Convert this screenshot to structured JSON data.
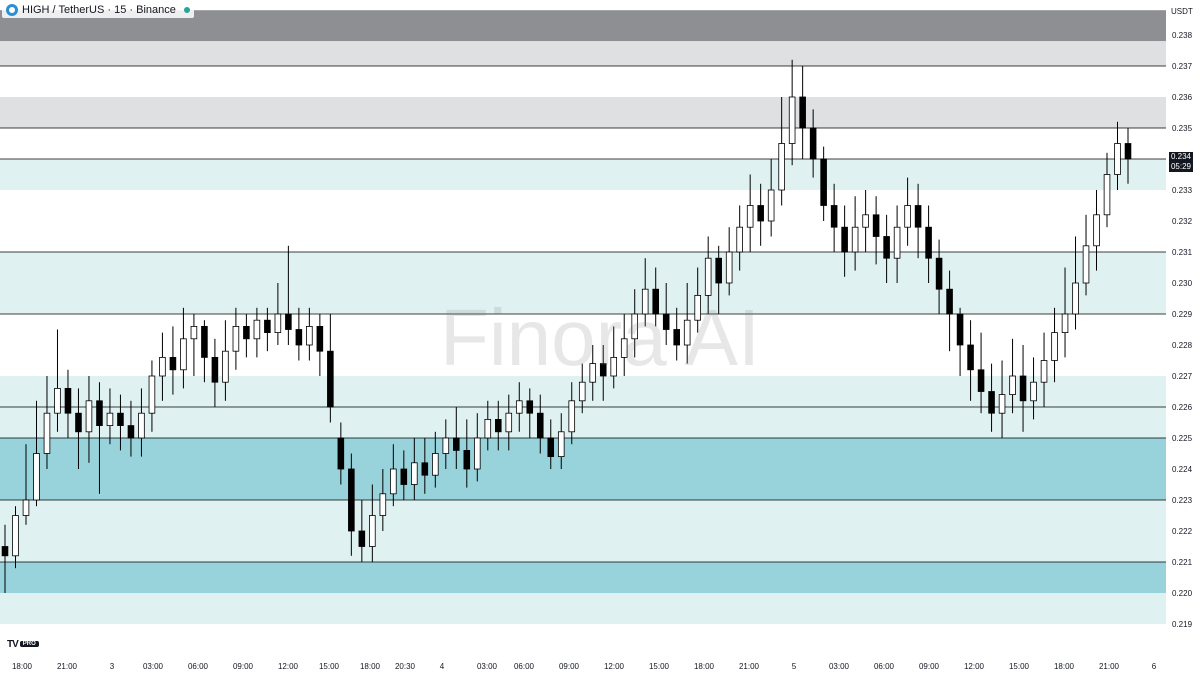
{
  "header": {
    "symbol": "HIGH / TetherUS · 15 · Binance",
    "watermark": "Finora AI",
    "currency": "USDT"
  },
  "price_tag": {
    "price": "0.234",
    "countdown": "05:29"
  },
  "logo": {
    "mark": "TV",
    "badge": "PRO"
  },
  "colors": {
    "zone_dark_gray": "#8e8f93",
    "zone_light_gray": "#dfe0e2",
    "zone_pale_teal": "#e0f1f2",
    "zone_mid_teal": "#98d3db",
    "zone_strong_teal": "#6fc3c6",
    "zone_green": "#b1dcca",
    "candle": "#000000"
  },
  "chart_data": {
    "type": "candlestick",
    "y_axis": {
      "labels": [
        "0.238",
        "0.237",
        "0.236",
        "0.235",
        "0.234",
        "0.233",
        "0.232",
        "0.231",
        "0.230",
        "0.229",
        "0.228",
        "0.227",
        "0.226",
        "0.225",
        "0.224",
        "0.223",
        "0.222",
        "0.221",
        "0.220",
        "0.219"
      ]
    },
    "x_axis": {
      "labels": [
        "18:00",
        "21:00",
        "3",
        "03:00",
        "06:00",
        "09:00",
        "12:00",
        "15:00",
        "18:00",
        "20:30",
        "4",
        "03:00",
        "06:00",
        "09:00",
        "12:00",
        "15:00",
        "18:00",
        "21:00",
        "5",
        "03:00",
        "06:00",
        "09:00",
        "12:00",
        "15:00",
        "18:00",
        "21:00",
        "6"
      ]
    },
    "zones": [
      {
        "from": 0.2378,
        "to": 0.2388,
        "color": "zone_dark_gray"
      },
      {
        "from": 0.237,
        "to": 0.2378,
        "color": "zone_light_gray"
      },
      {
        "from": 0.235,
        "to": 0.236,
        "color": "zone_light_gray"
      },
      {
        "from": 0.233,
        "to": 0.234,
        "color": "zone_pale_teal"
      },
      {
        "from": 0.229,
        "to": 0.231,
        "color": "zone_pale_teal"
      },
      {
        "from": 0.226,
        "to": 0.227,
        "color": "zone_pale_teal"
      },
      {
        "from": 0.225,
        "to": 0.226,
        "color": "zone_pale_teal"
      },
      {
        "from": 0.223,
        "to": 0.225,
        "color": "zone_mid_teal"
      },
      {
        "from": 0.222,
        "to": 0.223,
        "color": "zone_pale_teal"
      },
      {
        "from": 0.221,
        "to": 0.222,
        "color": "zone_pale_teal"
      },
      {
        "from": 0.22,
        "to": 0.221,
        "color": "zone_mid_teal"
      },
      {
        "from": 0.219,
        "to": 0.22,
        "color": "zone_pale_teal"
      }
    ],
    "levels": [
      0.237,
      0.235,
      0.234,
      0.231,
      0.229,
      0.226,
      0.225,
      0.223,
      0.221
    ],
    "candles": [
      [
        0.2215,
        0.2212,
        0.2222,
        0.22
      ],
      [
        0.2212,
        0.2225,
        0.2228,
        0.2208
      ],
      [
        0.2225,
        0.223,
        0.2248,
        0.2222
      ],
      [
        0.223,
        0.2245,
        0.2262,
        0.2228
      ],
      [
        0.2245,
        0.2258,
        0.227,
        0.224
      ],
      [
        0.2258,
        0.2266,
        0.2285,
        0.2252
      ],
      [
        0.2266,
        0.2258,
        0.2272,
        0.225
      ],
      [
        0.2258,
        0.2252,
        0.2266,
        0.224
      ],
      [
        0.2252,
        0.2262,
        0.227,
        0.2242
      ],
      [
        0.2262,
        0.2254,
        0.2268,
        0.2232
      ],
      [
        0.2254,
        0.2258,
        0.2266,
        0.2248
      ],
      [
        0.2258,
        0.2254,
        0.2264,
        0.2246
      ],
      [
        0.2254,
        0.225,
        0.2262,
        0.2244
      ],
      [
        0.225,
        0.2258,
        0.2266,
        0.2244
      ],
      [
        0.2258,
        0.227,
        0.2275,
        0.2252
      ],
      [
        0.227,
        0.2276,
        0.2284,
        0.2262
      ],
      [
        0.2276,
        0.2272,
        0.2286,
        0.2264
      ],
      [
        0.2272,
        0.2282,
        0.2292,
        0.2266
      ],
      [
        0.2282,
        0.2286,
        0.229,
        0.227
      ],
      [
        0.2286,
        0.2276,
        0.2288,
        0.2268
      ],
      [
        0.2276,
        0.2268,
        0.2282,
        0.226
      ],
      [
        0.2268,
        0.2278,
        0.2288,
        0.2262
      ],
      [
        0.2278,
        0.2286,
        0.2292,
        0.2272
      ],
      [
        0.2286,
        0.2282,
        0.229,
        0.2276
      ],
      [
        0.2282,
        0.2288,
        0.2292,
        0.2276
      ],
      [
        0.2288,
        0.2284,
        0.2292,
        0.2278
      ],
      [
        0.2284,
        0.229,
        0.23,
        0.228
      ],
      [
        0.229,
        0.2285,
        0.2312,
        0.228
      ],
      [
        0.2285,
        0.228,
        0.2292,
        0.2275
      ],
      [
        0.228,
        0.2286,
        0.2292,
        0.2275
      ],
      [
        0.2286,
        0.2278,
        0.229,
        0.227
      ],
      [
        0.2278,
        0.226,
        0.229,
        0.2255
      ],
      [
        0.225,
        0.224,
        0.2255,
        0.2235
      ],
      [
        0.224,
        0.222,
        0.2245,
        0.2212
      ],
      [
        0.222,
        0.2215,
        0.223,
        0.221
      ],
      [
        0.2215,
        0.2225,
        0.2235,
        0.221
      ],
      [
        0.2225,
        0.2232,
        0.224,
        0.222
      ],
      [
        0.2232,
        0.224,
        0.2248,
        0.2228
      ],
      [
        0.224,
        0.2235,
        0.2246,
        0.223
      ],
      [
        0.2235,
        0.2242,
        0.225,
        0.223
      ],
      [
        0.2242,
        0.2238,
        0.225,
        0.2232
      ],
      [
        0.2238,
        0.2245,
        0.2252,
        0.2234
      ],
      [
        0.2245,
        0.225,
        0.2256,
        0.224
      ],
      [
        0.225,
        0.2246,
        0.226,
        0.224
      ],
      [
        0.2246,
        0.224,
        0.2256,
        0.2234
      ],
      [
        0.224,
        0.225,
        0.2258,
        0.2236
      ],
      [
        0.225,
        0.2256,
        0.2262,
        0.2246
      ],
      [
        0.2256,
        0.2252,
        0.2262,
        0.2246
      ],
      [
        0.2252,
        0.2258,
        0.2264,
        0.2246
      ],
      [
        0.2258,
        0.2262,
        0.2268,
        0.2252
      ],
      [
        0.2262,
        0.2258,
        0.2266,
        0.225
      ],
      [
        0.2258,
        0.225,
        0.2264,
        0.2245
      ],
      [
        0.225,
        0.2244,
        0.2256,
        0.224
      ],
      [
        0.2244,
        0.2252,
        0.2258,
        0.224
      ],
      [
        0.2252,
        0.2262,
        0.2268,
        0.2248
      ],
      [
        0.2262,
        0.2268,
        0.2274,
        0.2258
      ],
      [
        0.2268,
        0.2274,
        0.228,
        0.2262
      ],
      [
        0.2274,
        0.227,
        0.228,
        0.2262
      ],
      [
        0.227,
        0.2276,
        0.2286,
        0.2266
      ],
      [
        0.2276,
        0.2282,
        0.229,
        0.227
      ],
      [
        0.2282,
        0.229,
        0.2298,
        0.2276
      ],
      [
        0.229,
        0.2298,
        0.2308,
        0.2286
      ],
      [
        0.2298,
        0.229,
        0.2305,
        0.2286
      ],
      [
        0.229,
        0.2285,
        0.23,
        0.228
      ],
      [
        0.2285,
        0.228,
        0.2292,
        0.2275
      ],
      [
        0.228,
        0.2288,
        0.23,
        0.2274
      ],
      [
        0.2288,
        0.2296,
        0.2305,
        0.2284
      ],
      [
        0.2296,
        0.2308,
        0.2315,
        0.229
      ],
      [
        0.2308,
        0.23,
        0.2312,
        0.229
      ],
      [
        0.23,
        0.231,
        0.2318,
        0.2296
      ],
      [
        0.231,
        0.2318,
        0.2325,
        0.2304
      ],
      [
        0.2318,
        0.2325,
        0.2335,
        0.231
      ],
      [
        0.2325,
        0.232,
        0.2332,
        0.2312
      ],
      [
        0.232,
        0.233,
        0.234,
        0.2315
      ],
      [
        0.233,
        0.2345,
        0.236,
        0.2325
      ],
      [
        0.2345,
        0.236,
        0.2372,
        0.2338
      ],
      [
        0.236,
        0.235,
        0.237,
        0.234
      ],
      [
        0.235,
        0.234,
        0.2356,
        0.2334
      ],
      [
        0.234,
        0.2325,
        0.2344,
        0.232
      ],
      [
        0.2325,
        0.2318,
        0.2332,
        0.231
      ],
      [
        0.2318,
        0.231,
        0.2325,
        0.2302
      ],
      [
        0.231,
        0.2318,
        0.2328,
        0.2304
      ],
      [
        0.2318,
        0.2322,
        0.233,
        0.231
      ],
      [
        0.2322,
        0.2315,
        0.2328,
        0.2306
      ],
      [
        0.2315,
        0.2308,
        0.2322,
        0.23
      ],
      [
        0.2308,
        0.2318,
        0.2325,
        0.23
      ],
      [
        0.2318,
        0.2325,
        0.2334,
        0.2312
      ],
      [
        0.2325,
        0.2318,
        0.2332,
        0.2308
      ],
      [
        0.2318,
        0.2308,
        0.2325,
        0.23
      ],
      [
        0.2308,
        0.2298,
        0.2314,
        0.229
      ],
      [
        0.2298,
        0.229,
        0.2304,
        0.2278
      ],
      [
        0.229,
        0.228,
        0.2292,
        0.227
      ],
      [
        0.228,
        0.2272,
        0.2288,
        0.2262
      ],
      [
        0.2272,
        0.2265,
        0.2284,
        0.2258
      ],
      [
        0.2265,
        0.2258,
        0.2274,
        0.2252
      ],
      [
        0.2258,
        0.2264,
        0.2275,
        0.225
      ],
      [
        0.2264,
        0.227,
        0.2282,
        0.2258
      ],
      [
        0.227,
        0.2262,
        0.228,
        0.2252
      ],
      [
        0.2262,
        0.2268,
        0.2276,
        0.2256
      ],
      [
        0.2268,
        0.2275,
        0.2284,
        0.226
      ],
      [
        0.2275,
        0.2284,
        0.2292,
        0.2268
      ],
      [
        0.2284,
        0.229,
        0.2305,
        0.2276
      ],
      [
        0.229,
        0.23,
        0.2315,
        0.2285
      ],
      [
        0.23,
        0.2312,
        0.2322,
        0.2296
      ],
      [
        0.2312,
        0.2322,
        0.233,
        0.2304
      ],
      [
        0.2322,
        0.2335,
        0.2342,
        0.2318
      ],
      [
        0.2335,
        0.2345,
        0.2352,
        0.233
      ],
      [
        0.2345,
        0.234,
        0.235,
        0.2332
      ]
    ]
  }
}
